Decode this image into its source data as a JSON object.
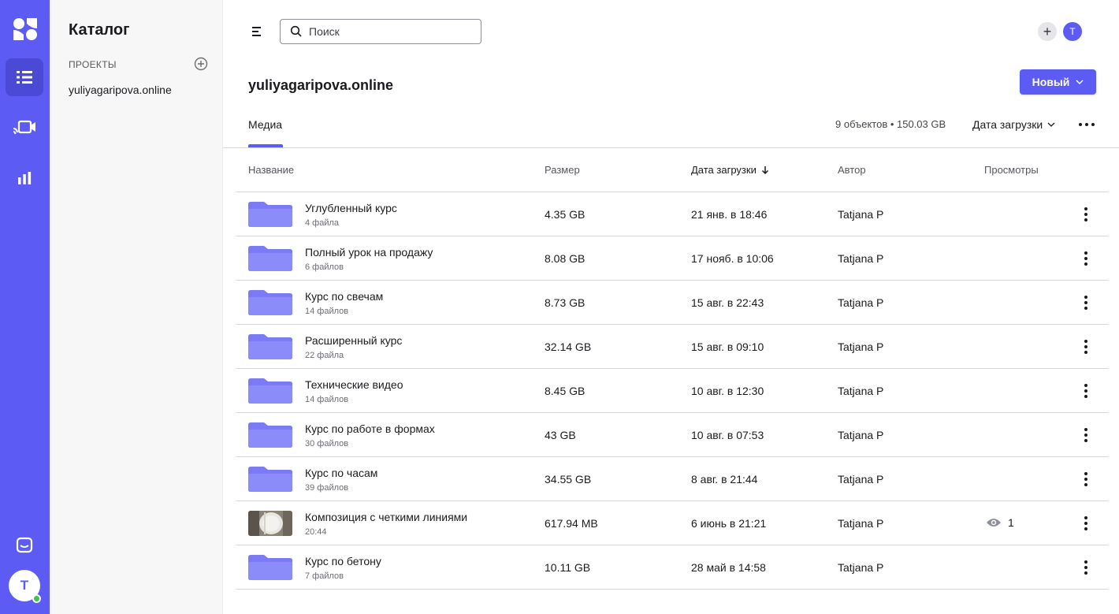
{
  "sidebar": {
    "title": "Каталог",
    "section_label": "ПРОЕКТЫ",
    "project_name": "yuliyagaripova.online",
    "user_initial": "T"
  },
  "header": {
    "search_placeholder": "Поиск",
    "user_initial": "T"
  },
  "page": {
    "title": "yuliyagaripova.online",
    "new_button_label": "Новый",
    "tab_label": "Медиа",
    "summary": "9 объектов • 150.03 GB",
    "sort_label": "Дата загрузки"
  },
  "table": {
    "columns": {
      "name": "Название",
      "size": "Размер",
      "date": "Дата загрузки",
      "author": "Автор",
      "views": "Просмотры"
    },
    "rows": [
      {
        "name": "Углубленный курс",
        "sub": "4 файла",
        "size": "4.35 GB",
        "date": "21 янв. в 18:46",
        "author": "Tatjana P",
        "views": ""
      },
      {
        "name": "Полный урок на продажу",
        "sub": "6 файлов",
        "size": "8.08 GB",
        "date": "17 нояб. в 10:06",
        "author": "Tatjana P",
        "views": ""
      },
      {
        "name": "Курс по свечам",
        "sub": "14 файлов",
        "size": "8.73 GB",
        "date": "15 авг. в 22:43",
        "author": "Tatjana P",
        "views": ""
      },
      {
        "name": "Расширенный курс",
        "sub": "22 файла",
        "size": "32.14 GB",
        "date": "15 авг. в 09:10",
        "author": "Tatjana P",
        "views": ""
      },
      {
        "name": "Технические видео",
        "sub": "14 файлов",
        "size": "8.45 GB",
        "date": "10 авг. в 12:30",
        "author": "Tatjana P",
        "views": ""
      },
      {
        "name": "Курс по работе в формах",
        "sub": "30 файлов",
        "size": "43 GB",
        "date": "10 авг. в 07:53",
        "author": "Tatjana P",
        "views": ""
      },
      {
        "name": "Курс по часам",
        "sub": "39 файлов",
        "size": "34.55 GB",
        "date": "8 авг. в 21:44",
        "author": "Tatjana P",
        "views": ""
      },
      {
        "name": "Композиция с четкими линиями",
        "sub": "20:44",
        "size": "617.94 MB",
        "date": "6 июнь в 21:21",
        "author": "Tatjana P",
        "views": "1"
      },
      {
        "name": "Курс по бетону",
        "sub": "7 файлов",
        "size": "10.11 GB",
        "date": "28 май в 14:58",
        "author": "Tatjana P",
        "views": ""
      }
    ]
  },
  "colors": {
    "accent": "#5c5cf5",
    "folder": "#7b7bf6",
    "online": "#3fc44e"
  },
  "icons": [
    "app-logo-icon",
    "catalog-icon",
    "video-call-icon",
    "analytics-icon",
    "chat-icon",
    "menu-icon",
    "search-icon",
    "add-circle-icon",
    "folder-icon",
    "eye-icon",
    "more-vertical-icon",
    "more-horizontal-icon",
    "chevron-down-icon",
    "arrow-down-icon"
  ]
}
